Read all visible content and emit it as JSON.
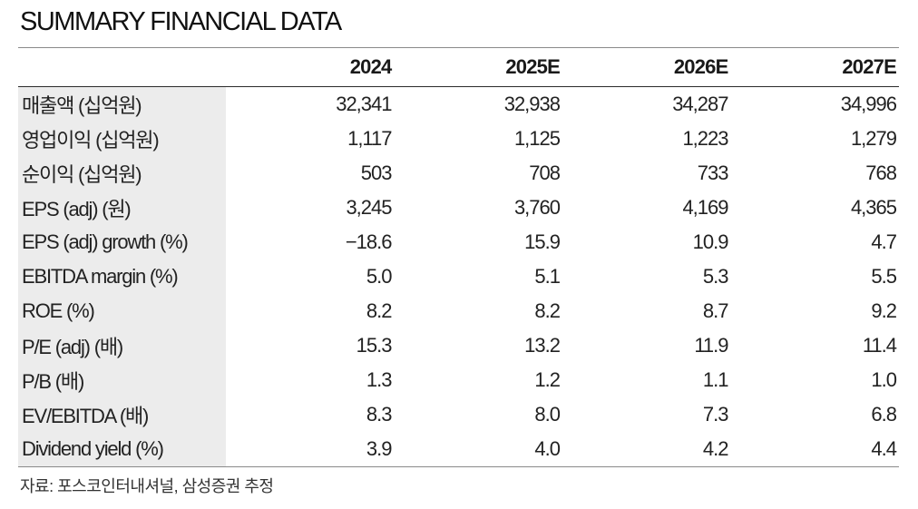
{
  "title": "SUMMARY FINANCIAL DATA",
  "table": {
    "columns": [
      "2024",
      "2025E",
      "2026E",
      "2027E"
    ],
    "rows": [
      {
        "label": "매출액 (십억원)",
        "values": [
          "32,341",
          "32,938",
          "34,287",
          "34,996"
        ]
      },
      {
        "label": "영업이익 (십억원)",
        "values": [
          "1,117",
          "1,125",
          "1,223",
          "1,279"
        ]
      },
      {
        "label": "순이익 (십억원)",
        "values": [
          "503",
          "708",
          "733",
          "768"
        ]
      },
      {
        "label": "EPS (adj) (원)",
        "values": [
          "3,245",
          "3,760",
          "4,169",
          "4,365"
        ]
      },
      {
        "label": "EPS (adj) growth (%)",
        "values": [
          "−18.6",
          "15.9",
          "10.9",
          "4.7"
        ]
      },
      {
        "label": "EBITDA margin (%)",
        "values": [
          "5.0",
          "5.1",
          "5.3",
          "5.5"
        ]
      },
      {
        "label": "ROE (%)",
        "values": [
          "8.2",
          "8.2",
          "8.7",
          "9.2"
        ]
      },
      {
        "label": "P/E (adj) (배)",
        "values": [
          "15.3",
          "13.2",
          "11.9",
          "11.4"
        ]
      },
      {
        "label": "P/B (배)",
        "values": [
          "1.3",
          "1.2",
          "1.1",
          "1.0"
        ]
      },
      {
        "label": "EV/EBITDA (배)",
        "values": [
          "8.3",
          "8.0",
          "7.3",
          "6.8"
        ]
      },
      {
        "label": "Dividend yield (%)",
        "values": [
          "3.9",
          "4.0",
          "4.2",
          "4.4"
        ]
      }
    ]
  },
  "source": "자료: 포스코인터내셔널, 삼성증권 추정"
}
